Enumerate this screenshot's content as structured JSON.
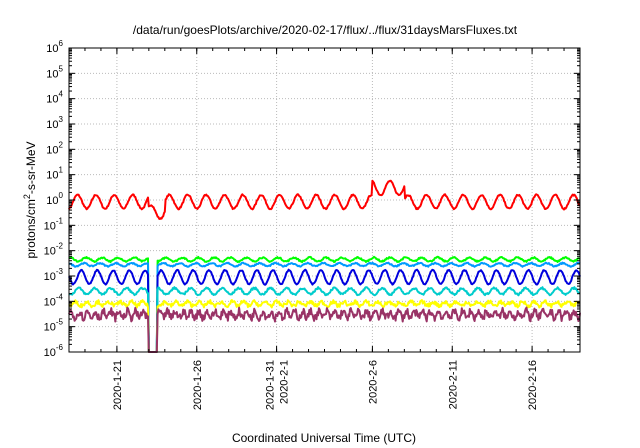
{
  "chart_data": {
    "type": "line",
    "title": "/data/run/goesPlots/archive/2020-02-17/flux/../flux/31daysMarsFluxes.txt",
    "xlabel": "Coordinated Universal Time (UTC)",
    "ylabel": {
      "prefix": "protons/cm",
      "sup": "2",
      "suffix": "-s-sr-MeV"
    },
    "yscale": "log",
    "ylim": [
      "1e-6",
      "1e6"
    ],
    "xlim": [
      "2020-01-18",
      "2020-02-19"
    ],
    "grid": true,
    "y_ticks": [
      {
        "base": "10",
        "exp": "6"
      },
      {
        "base": "10",
        "exp": "5"
      },
      {
        "base": "10",
        "exp": "4"
      },
      {
        "base": "10",
        "exp": "3"
      },
      {
        "base": "10",
        "exp": "2"
      },
      {
        "base": "10",
        "exp": "1"
      },
      {
        "base": "10",
        "exp": "0"
      },
      {
        "base": "10",
        "exp": "-1"
      },
      {
        "base": "10",
        "exp": "-2"
      },
      {
        "base": "10",
        "exp": "-3"
      },
      {
        "base": "10",
        "exp": "-4"
      },
      {
        "base": "10",
        "exp": "-5"
      },
      {
        "base": "10",
        "exp": "-6"
      }
    ],
    "x_ticks": [
      [
        "2020-1-21"
      ],
      [
        "2020-1-26"
      ],
      [
        "2020-1-31",
        "2020-2-1"
      ],
      [
        "2020-2-6"
      ],
      [
        "2020-2-11"
      ],
      [
        "2020-2-16"
      ]
    ],
    "series": [
      {
        "color": "#ff0000",
        "baseline": 0.85,
        "amplitude": 0.55,
        "period_days": 1.15,
        "noise": 0.06,
        "events": [
          {
            "start": "2020-01-23",
            "end": "2020-01-24",
            "factor": 0.4
          },
          {
            "start": "2020-02-06",
            "end": "2020-02-08",
            "factor": 3.5
          }
        ]
      },
      {
        "color": "#00ff00",
        "baseline": 0.0045,
        "amplitude": 0.15,
        "period_days": 1.0,
        "noise": 0.06,
        "events": [
          {
            "start": "2020-01-23",
            "end": "2020-01-23.5",
            "factor": 0.0001
          }
        ]
      },
      {
        "color": "#0099ff",
        "baseline": 0.0028,
        "amplitude": 0.12,
        "period_days": 1.0,
        "noise": 0.05,
        "events": [
          {
            "start": "2020-01-23",
            "end": "2020-01-23.5",
            "factor": 0.0001
          }
        ]
      },
      {
        "color": "#0000dd",
        "baseline": 0.0009,
        "amplitude": 0.55,
        "period_days": 1.0,
        "noise": 0.05,
        "events": [
          {
            "start": "2020-01-23",
            "end": "2020-01-23.5",
            "factor": 0.0001
          }
        ]
      },
      {
        "color": "#00cccc",
        "baseline": 0.00025,
        "amplitude": 0.25,
        "period_days": 1.0,
        "noise": 0.08,
        "events": [
          {
            "start": "2020-01-23",
            "end": "2020-01-23.5",
            "factor": 0.0001
          }
        ]
      },
      {
        "color": "#ffff00",
        "baseline": 8e-05,
        "amplitude": 0.15,
        "period_days": 0.7,
        "noise": 0.15,
        "events": [
          {
            "start": "2020-01-23",
            "end": "2020-01-23.5",
            "factor": 0.0001
          }
        ]
      },
      {
        "color": "#993366",
        "baseline": 3e-05,
        "amplitude": 0.25,
        "period_days": 0.5,
        "noise": 0.3,
        "events": [
          {
            "start": "2020-01-23",
            "end": "2020-01-23.5",
            "factor": 0.0001
          }
        ]
      }
    ]
  }
}
